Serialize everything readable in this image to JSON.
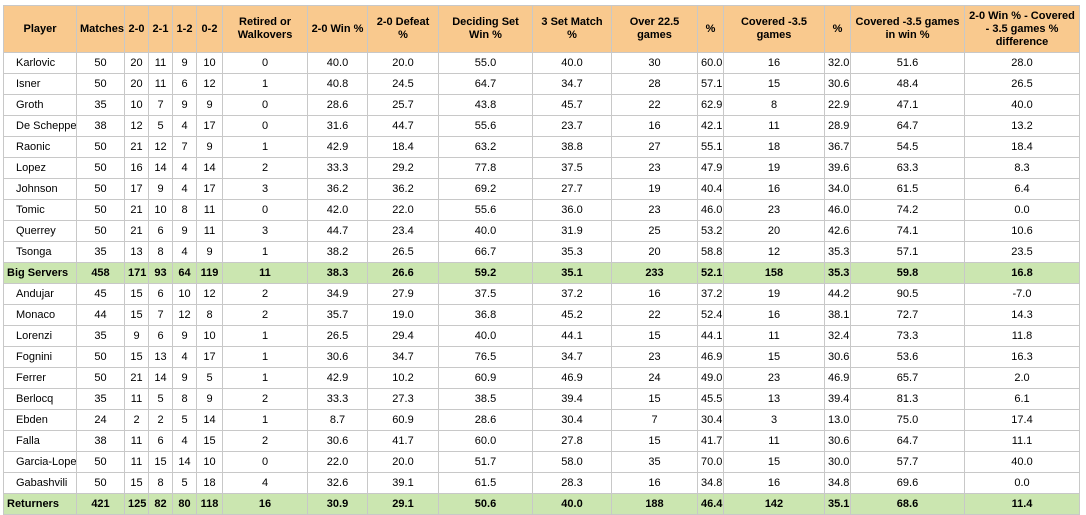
{
  "table": {
    "headers": [
      "Player",
      "Matches",
      "2-0",
      "2-1",
      "1-2",
      "0-2",
      "Retired or Walkovers",
      "2-0 Win %",
      "2-0 Defeat %",
      "Deciding Set Win %",
      "3 Set Match %",
      "Over 22.5 games",
      "%",
      "Covered -3.5 games",
      "%",
      "Covered -3.5 games in win %",
      "2-0 Win % - Covered - 3.5 games % difference"
    ],
    "rows": [
      {
        "cells": [
          "Karlovic",
          "50",
          "20",
          "11",
          "9",
          "10",
          "0",
          "40.0",
          "20.0",
          "55.0",
          "40.0",
          "30",
          "60.0",
          "16",
          "32.0",
          "51.6",
          "28.0"
        ],
        "summary": false
      },
      {
        "cells": [
          "Isner",
          "50",
          "20",
          "11",
          "6",
          "12",
          "1",
          "40.8",
          "24.5",
          "64.7",
          "34.7",
          "28",
          "57.1",
          "15",
          "30.6",
          "48.4",
          "26.5"
        ],
        "summary": false
      },
      {
        "cells": [
          "Groth",
          "35",
          "10",
          "7",
          "9",
          "9",
          "0",
          "28.6",
          "25.7",
          "43.8",
          "45.7",
          "22",
          "62.9",
          "8",
          "22.9",
          "47.1",
          "40.0"
        ],
        "summary": false
      },
      {
        "cells": [
          "De Schepper",
          "38",
          "12",
          "5",
          "4",
          "17",
          "0",
          "31.6",
          "44.7",
          "55.6",
          "23.7",
          "16",
          "42.1",
          "11",
          "28.9",
          "64.7",
          "13.2"
        ],
        "summary": false
      },
      {
        "cells": [
          "Raonic",
          "50",
          "21",
          "12",
          "7",
          "9",
          "1",
          "42.9",
          "18.4",
          "63.2",
          "38.8",
          "27",
          "55.1",
          "18",
          "36.7",
          "54.5",
          "18.4"
        ],
        "summary": false
      },
      {
        "cells": [
          "Lopez",
          "50",
          "16",
          "14",
          "4",
          "14",
          "2",
          "33.3",
          "29.2",
          "77.8",
          "37.5",
          "23",
          "47.9",
          "19",
          "39.6",
          "63.3",
          "8.3"
        ],
        "summary": false
      },
      {
        "cells": [
          "Johnson",
          "50",
          "17",
          "9",
          "4",
          "17",
          "3",
          "36.2",
          "36.2",
          "69.2",
          "27.7",
          "19",
          "40.4",
          "16",
          "34.0",
          "61.5",
          "6.4"
        ],
        "summary": false
      },
      {
        "cells": [
          "Tomic",
          "50",
          "21",
          "10",
          "8",
          "11",
          "0",
          "42.0",
          "22.0",
          "55.6",
          "36.0",
          "23",
          "46.0",
          "23",
          "46.0",
          "74.2",
          "0.0"
        ],
        "summary": false
      },
      {
        "cells": [
          "Querrey",
          "50",
          "21",
          "6",
          "9",
          "11",
          "3",
          "44.7",
          "23.4",
          "40.0",
          "31.9",
          "25",
          "53.2",
          "20",
          "42.6",
          "74.1",
          "10.6"
        ],
        "summary": false
      },
      {
        "cells": [
          "Tsonga",
          "35",
          "13",
          "8",
          "4",
          "9",
          "1",
          "38.2",
          "26.5",
          "66.7",
          "35.3",
          "20",
          "58.8",
          "12",
          "35.3",
          "57.1",
          "23.5"
        ],
        "summary": false
      },
      {
        "cells": [
          "Big Servers",
          "458",
          "171",
          "93",
          "64",
          "119",
          "11",
          "38.3",
          "26.6",
          "59.2",
          "35.1",
          "233",
          "52.1",
          "158",
          "35.3",
          "59.8",
          "16.8"
        ],
        "summary": true
      },
      {
        "cells": [
          "Andujar",
          "45",
          "15",
          "6",
          "10",
          "12",
          "2",
          "34.9",
          "27.9",
          "37.5",
          "37.2",
          "16",
          "37.2",
          "19",
          "44.2",
          "90.5",
          "-7.0"
        ],
        "summary": false
      },
      {
        "cells": [
          "Monaco",
          "44",
          "15",
          "7",
          "12",
          "8",
          "2",
          "35.7",
          "19.0",
          "36.8",
          "45.2",
          "22",
          "52.4",
          "16",
          "38.1",
          "72.7",
          "14.3"
        ],
        "summary": false
      },
      {
        "cells": [
          "Lorenzi",
          "35",
          "9",
          "6",
          "9",
          "10",
          "1",
          "26.5",
          "29.4",
          "40.0",
          "44.1",
          "15",
          "44.1",
          "11",
          "32.4",
          "73.3",
          "11.8"
        ],
        "summary": false
      },
      {
        "cells": [
          "Fognini",
          "50",
          "15",
          "13",
          "4",
          "17",
          "1",
          "30.6",
          "34.7",
          "76.5",
          "34.7",
          "23",
          "46.9",
          "15",
          "30.6",
          "53.6",
          "16.3"
        ],
        "summary": false
      },
      {
        "cells": [
          "Ferrer",
          "50",
          "21",
          "14",
          "9",
          "5",
          "1",
          "42.9",
          "10.2",
          "60.9",
          "46.9",
          "24",
          "49.0",
          "23",
          "46.9",
          "65.7",
          "2.0"
        ],
        "summary": false
      },
      {
        "cells": [
          "Berlocq",
          "35",
          "11",
          "5",
          "8",
          "9",
          "2",
          "33.3",
          "27.3",
          "38.5",
          "39.4",
          "15",
          "45.5",
          "13",
          "39.4",
          "81.3",
          "6.1"
        ],
        "summary": false
      },
      {
        "cells": [
          "Ebden",
          "24",
          "2",
          "2",
          "5",
          "14",
          "1",
          "8.7",
          "60.9",
          "28.6",
          "30.4",
          "7",
          "30.4",
          "3",
          "13.0",
          "75.0",
          "17.4"
        ],
        "summary": false
      },
      {
        "cells": [
          "Falla",
          "38",
          "11",
          "6",
          "4",
          "15",
          "2",
          "30.6",
          "41.7",
          "60.0",
          "27.8",
          "15",
          "41.7",
          "11",
          "30.6",
          "64.7",
          "11.1"
        ],
        "summary": false
      },
      {
        "cells": [
          "Garcia-Lopez",
          "50",
          "11",
          "15",
          "14",
          "10",
          "0",
          "22.0",
          "20.0",
          "51.7",
          "58.0",
          "35",
          "70.0",
          "15",
          "30.0",
          "57.7",
          "40.0"
        ],
        "summary": false
      },
      {
        "cells": [
          "Gabashvili",
          "50",
          "15",
          "8",
          "5",
          "18",
          "4",
          "32.6",
          "39.1",
          "61.5",
          "28.3",
          "16",
          "34.8",
          "16",
          "34.8",
          "69.6",
          "0.0"
        ],
        "summary": false
      },
      {
        "cells": [
          "Returners",
          "421",
          "125",
          "82",
          "80",
          "118",
          "16",
          "30.9",
          "29.1",
          "50.6",
          "40.0",
          "188",
          "46.4",
          "142",
          "35.1",
          "68.6",
          "11.4"
        ],
        "summary": true
      }
    ]
  }
}
